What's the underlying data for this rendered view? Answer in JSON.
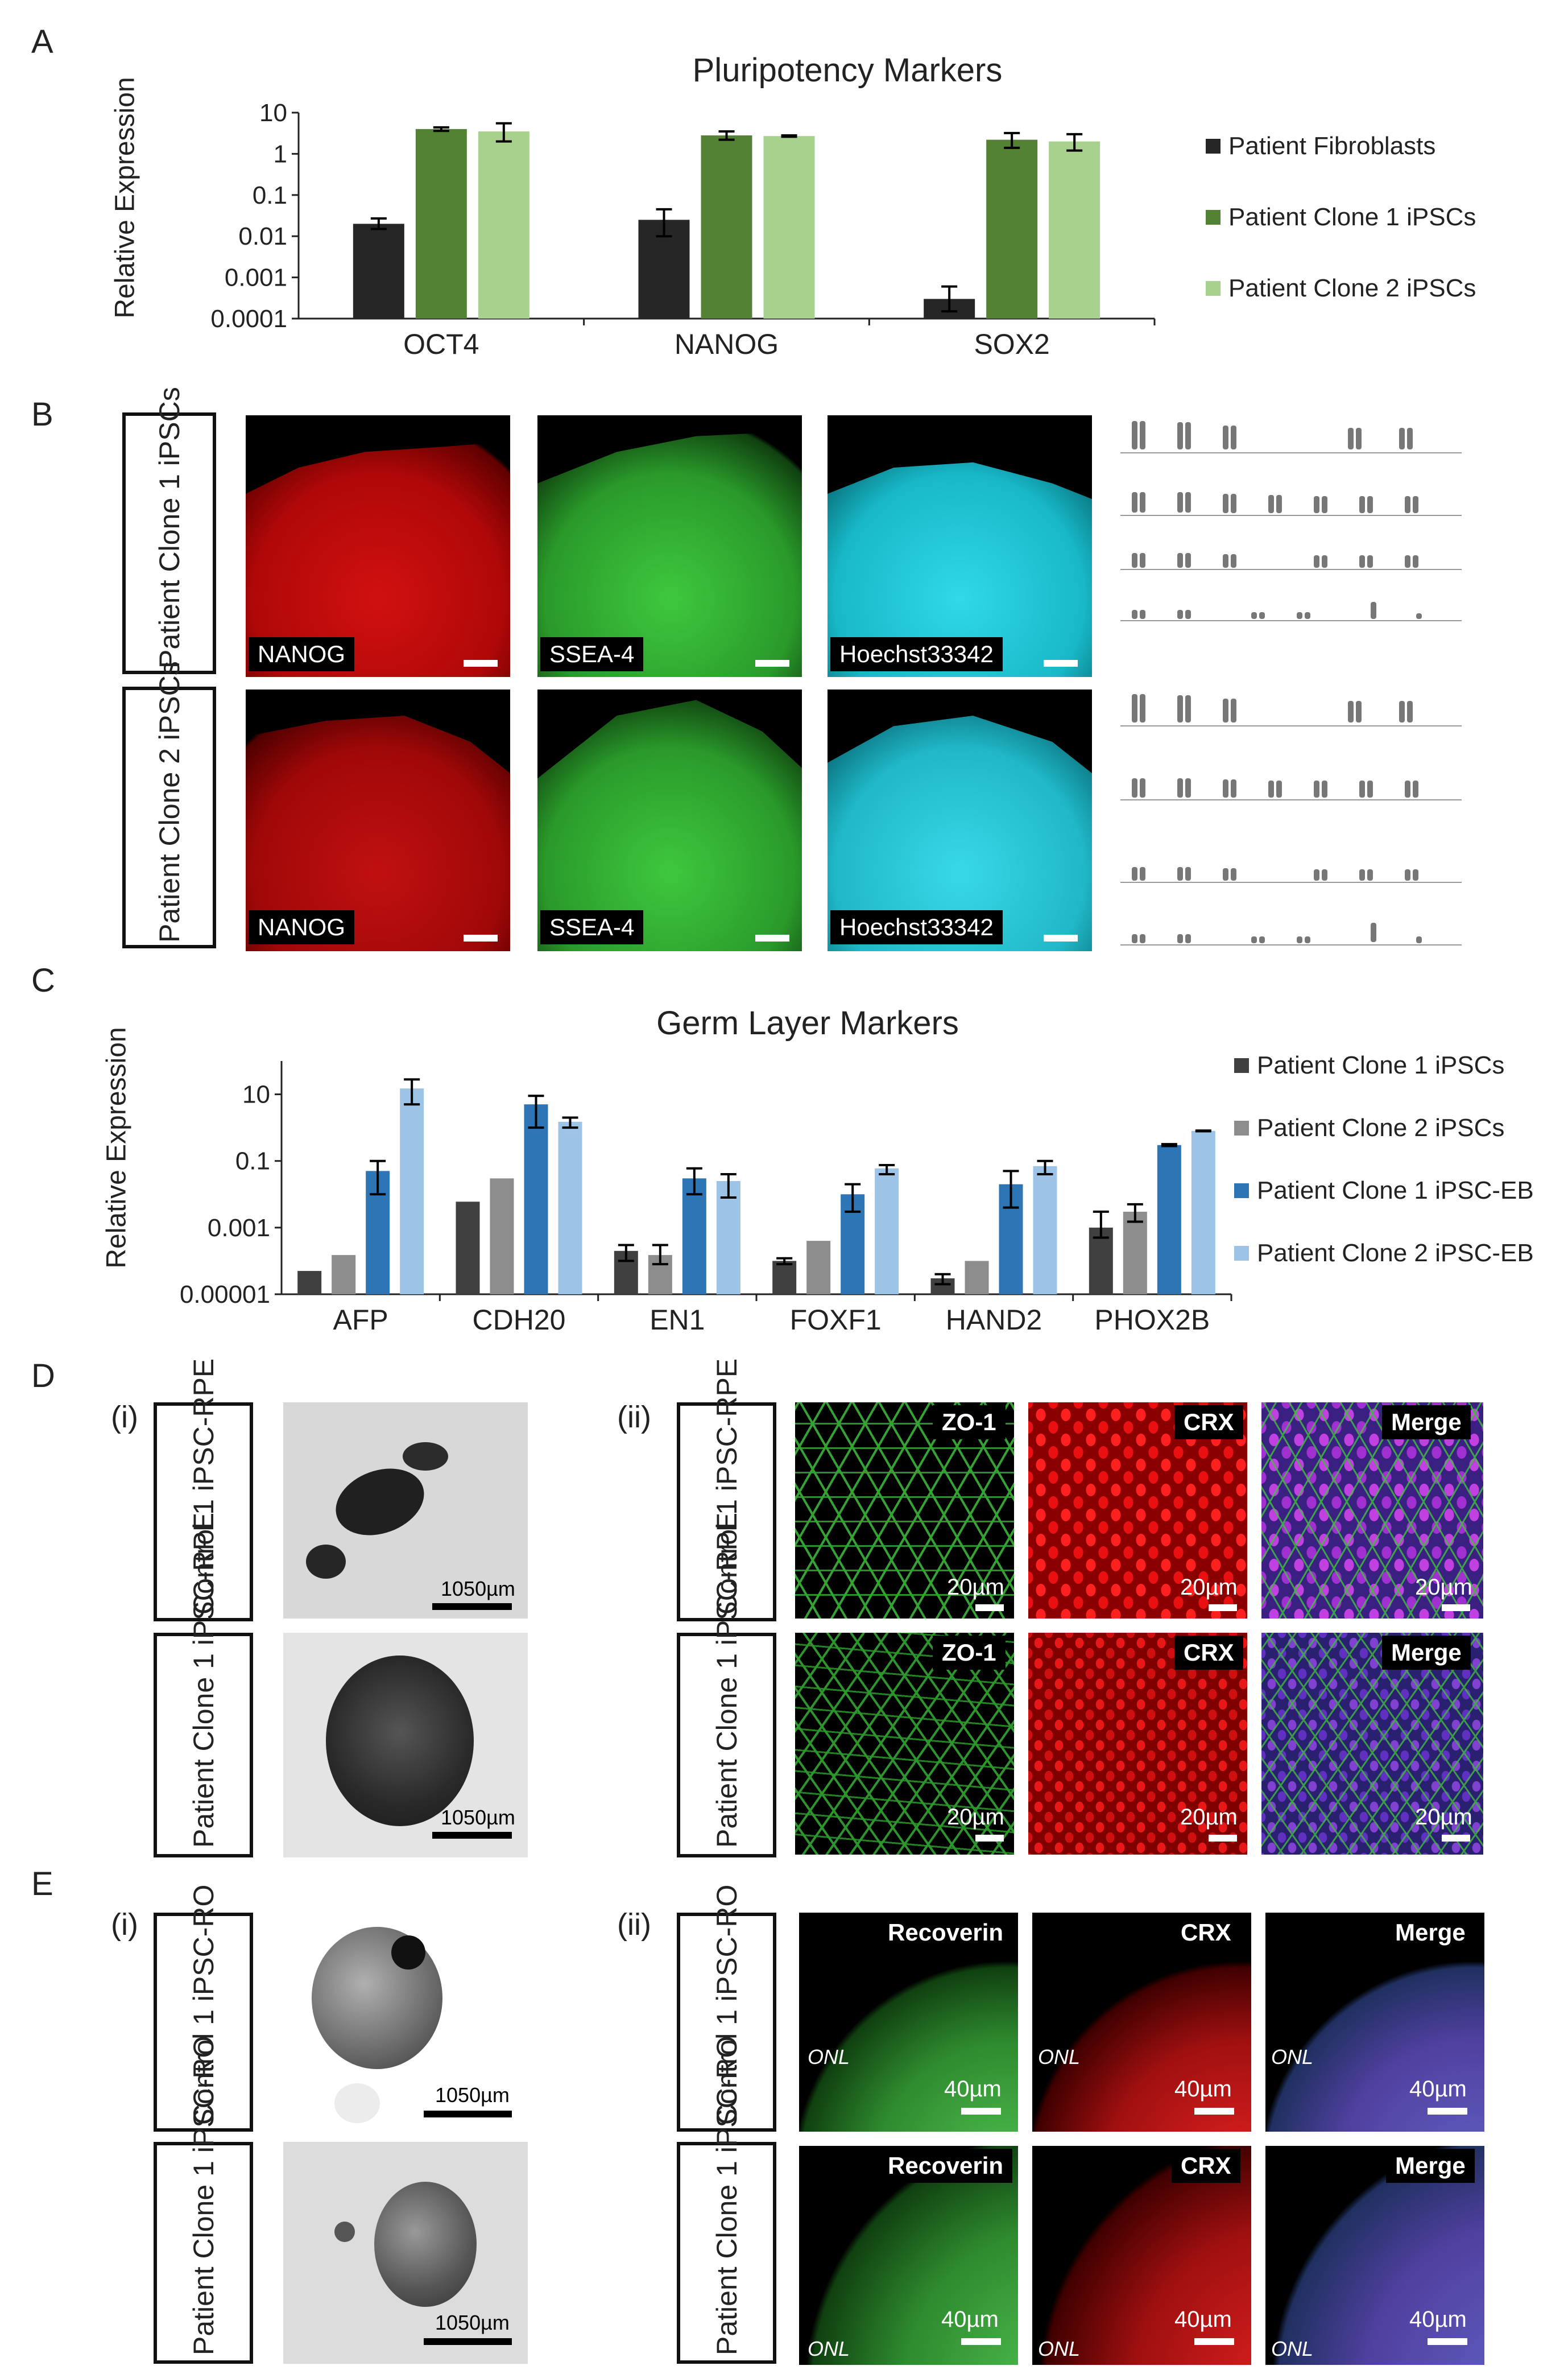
{
  "panels": {
    "A": "A",
    "B": "B",
    "C": "C",
    "D": "D",
    "E": "E"
  },
  "panelA": {
    "title": "Pluripotency Markers",
    "ylabel": "Relative Expression",
    "yticks": [
      "10",
      "1",
      "0.1",
      "0.01",
      "0.001",
      "0.0001"
    ],
    "legend": [
      "Patient Fibroblasts",
      "Patient Clone 1 iPSCs",
      "Patient Clone 2 iPSCs"
    ],
    "colors": [
      "#262626",
      "#548235",
      "#a9d18e"
    ]
  },
  "panelC": {
    "title": "Germ Layer Markers",
    "ylabel": "Relative Expression",
    "yticks": [
      "10",
      "0.1",
      "0.001",
      "0.00001"
    ],
    "legend": [
      "Patient Clone 1 iPSCs",
      "Patient Clone 2 iPSCs",
      "Patient Clone 1 iPSC-EB",
      "Patient Clone 2 iPSC-EB"
    ],
    "colors": [
      "#404040",
      "#8c8c8c",
      "#2e75b6",
      "#9dc3e6"
    ]
  },
  "chart_data": [
    {
      "type": "bar",
      "title": "Pluripotency Markers",
      "ylabel": "Relative Expression",
      "yscale": "log",
      "ylim": [
        0.0001,
        10
      ],
      "categories": [
        "OCT4",
        "NANOG",
        "SOX2"
      ],
      "series": [
        {
          "name": "Patient Fibroblasts",
          "values": [
            0.02,
            0.025,
            0.0003
          ],
          "errors": [
            [
              0.015,
              0.027
            ],
            [
              0.01,
              0.045
            ],
            [
              0.00015,
              0.0006
            ]
          ]
        },
        {
          "name": "Patient Clone 1 iPSCs",
          "values": [
            4,
            2.8,
            2.2
          ],
          "errors": [
            [
              3.6,
              4.4
            ],
            [
              2.2,
              3.5
            ],
            [
              1.4,
              3.2
            ]
          ]
        },
        {
          "name": "Patient Clone 2 iPSCs",
          "values": [
            3.5,
            2.7,
            2
          ],
          "errors": [
            [
              2,
              5.5
            ],
            [
              2.6,
              2.8
            ],
            [
              1.2,
              3
            ]
          ]
        }
      ]
    },
    {
      "type": "bar",
      "title": "Germ Layer Markers",
      "ylabel": "Relative Expression",
      "yscale": "log",
      "ylim": [
        1e-05,
        100
      ],
      "categories": [
        "AFP",
        "CDH20",
        "EN1",
        "FOXF1",
        "HAND2",
        "PHOX2B"
      ],
      "series": [
        {
          "name": "Patient Clone 1 iPSCs",
          "values": [
            5e-05,
            0.006,
            0.0002,
            0.0001,
            3e-05,
            0.001
          ],
          "errors": [
            [
              5e-05,
              5e-05
            ],
            [
              0.006,
              0.006
            ],
            [
              0.0001,
              0.0003
            ],
            [
              8e-05,
              0.00012
            ],
            [
              2e-05,
              4e-05
            ],
            [
              0.0005,
              0.003
            ]
          ]
        },
        {
          "name": "Patient Clone 2 iPSCs",
          "values": [
            0.00015,
            0.03,
            0.00015,
            0.0004,
            0.0001,
            0.003
          ],
          "errors": [
            [
              0.00015,
              0.00015
            ],
            [
              0.03,
              0.03
            ],
            [
              8e-05,
              0.0003
            ],
            [
              0.0004,
              0.0004
            ],
            [
              0.0001,
              0.0001
            ],
            [
              0.0015,
              0.005
            ]
          ]
        },
        {
          "name": "Patient Clone 1 iPSC-EB",
          "values": [
            0.05,
            5,
            0.03,
            0.01,
            0.02,
            0.3
          ],
          "errors": [
            [
              0.01,
              0.1
            ],
            [
              1,
              9
            ],
            [
              0.01,
              0.06
            ],
            [
              0.003,
              0.02
            ],
            [
              0.004,
              0.05
            ],
            [
              0.28,
              0.32
            ]
          ]
        },
        {
          "name": "Patient Clone 2 iPSC-EB",
          "values": [
            15,
            1.5,
            0.025,
            0.06,
            0.07,
            0.8
          ],
          "errors": [
            [
              5,
              28
            ],
            [
              1,
              2
            ],
            [
              0.008,
              0.04
            ],
            [
              0.04,
              0.075
            ],
            [
              0.04,
              0.1
            ],
            [
              0.78,
              0.82
            ]
          ]
        }
      ]
    }
  ],
  "panelB": {
    "rows": [
      "Patient Clone 1 iPSCs",
      "Patient Clone 2 iPSCs"
    ],
    "tags": [
      "NANOG",
      "SSEA-4",
      "Hoechst33342"
    ]
  },
  "panelD": {
    "i_label": "(i)",
    "ii_label": "(ii)",
    "rows": [
      "Control 1 iPSC-RPE",
      "Patient Clone 1 iPSC-RPE"
    ],
    "scale_bf": "1050µm",
    "tags": [
      "ZO-1",
      "CRX",
      "Merge"
    ],
    "scale_if": "20µm"
  },
  "panelE": {
    "i_label": "(i)",
    "ii_label": "(ii)",
    "rows": [
      "Control 1 iPSC-RO",
      "Patient Clone 1 iPSC-RO"
    ],
    "scale_bf": "1050µm",
    "tags": [
      "Recoverin",
      "CRX",
      "Merge"
    ],
    "scale_if": "40µm",
    "onl": "ONL"
  }
}
